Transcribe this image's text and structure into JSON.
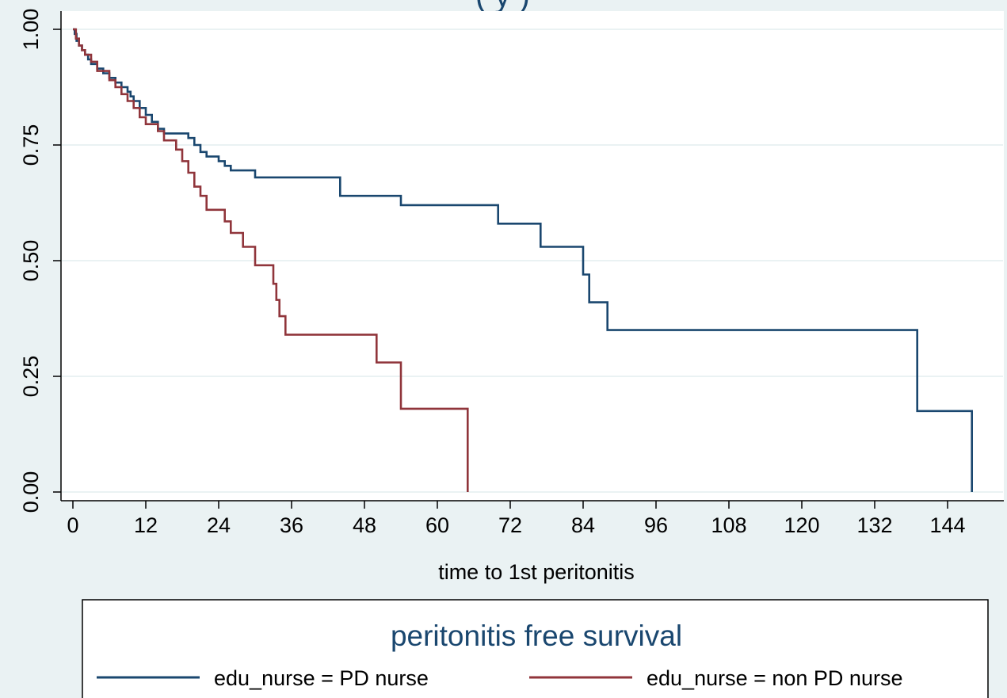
{
  "chart_data": {
    "type": "line",
    "title_fragment": "(                    y                              )",
    "xlabel": "time to 1st peritonitis",
    "ylabel": "",
    "xlim": [
      0,
      150
    ],
    "ylim": [
      0,
      1
    ],
    "xticks": [
      0,
      12,
      24,
      36,
      48,
      60,
      72,
      84,
      96,
      108,
      120,
      132,
      144
    ],
    "xtick_labels": [
      "0",
      "12",
      "24",
      "36",
      "48",
      "60",
      "72",
      "84",
      "96",
      "108",
      "120",
      "132",
      "144"
    ],
    "yticks": [
      0,
      0.25,
      0.5,
      0.75,
      1
    ],
    "ytick_labels": [
      "0.00",
      "0.25",
      "0.50",
      "0.75",
      "1.00"
    ],
    "grid": "horizontal",
    "legend_title": "peritonitis free survival",
    "legend_position": "bottom",
    "series": [
      {
        "name": "edu_nurse = PD nurse",
        "color": "#1a476f",
        "step": true,
        "x": [
          0,
          0.3,
          0.6,
          1,
          1.5,
          2,
          2.5,
          3,
          4,
          5,
          6,
          7,
          8,
          9,
          9.5,
          10,
          11,
          12,
          13,
          14,
          15,
          18,
          19,
          20,
          21,
          22,
          24,
          25,
          26,
          30,
          40,
          43,
          44,
          50,
          54,
          60,
          65,
          69,
          70,
          76,
          77,
          83,
          84,
          85,
          86,
          88,
          100,
          120,
          138,
          139,
          148
        ],
        "y": [
          1,
          0.99,
          0.975,
          0.965,
          0.955,
          0.945,
          0.935,
          0.925,
          0.915,
          0.905,
          0.895,
          0.885,
          0.875,
          0.865,
          0.855,
          0.845,
          0.83,
          0.815,
          0.8,
          0.785,
          0.775,
          0.775,
          0.765,
          0.75,
          0.735,
          0.725,
          0.715,
          0.705,
          0.695,
          0.68,
          0.68,
          0.68,
          0.64,
          0.64,
          0.62,
          0.62,
          0.62,
          0.62,
          0.58,
          0.58,
          0.53,
          0.53,
          0.47,
          0.41,
          0.41,
          0.35,
          0.35,
          0.35,
          0.35,
          0.175,
          0
        ]
      },
      {
        "name": "edu_nurse = non PD nurse",
        "color": "#90353b",
        "step": true,
        "x": [
          0,
          0.5,
          1,
          1.5,
          2,
          3,
          4,
          6,
          7,
          8,
          9,
          10,
          11,
          12,
          14,
          15,
          17,
          18,
          19,
          20,
          21,
          22,
          24,
          25,
          26,
          28,
          30,
          32,
          33,
          33.5,
          34,
          35,
          36,
          44,
          50,
          54,
          60,
          65
        ],
        "y": [
          1,
          0.98,
          0.965,
          0.955,
          0.945,
          0.93,
          0.91,
          0.89,
          0.875,
          0.86,
          0.845,
          0.83,
          0.81,
          0.795,
          0.78,
          0.76,
          0.74,
          0.715,
          0.69,
          0.66,
          0.64,
          0.61,
          0.61,
          0.585,
          0.56,
          0.53,
          0.49,
          0.49,
          0.45,
          0.415,
          0.38,
          0.34,
          0.34,
          0.34,
          0.28,
          0.18,
          0.18,
          0
        ]
      }
    ]
  }
}
